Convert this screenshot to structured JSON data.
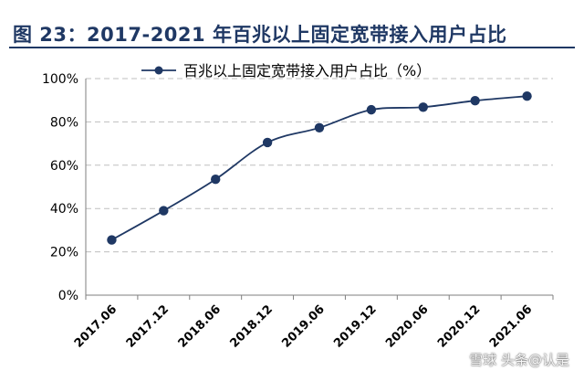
{
  "figure": {
    "title": "图 23：2017-2021 年百兆以上固定宽带接入用户占比"
  },
  "watermark": "雪球 头条@认是",
  "colors": {
    "title": "#1f3864",
    "series": "#1f3864",
    "grid": "#bfbfbf",
    "axis": "#7f7f7f"
  },
  "chart_data": {
    "type": "line",
    "categories": [
      "2017.06",
      "2017.12",
      "2018.06",
      "2018.12",
      "2019.06",
      "2019.12",
      "2020.06",
      "2020.12",
      "2021.06"
    ],
    "series": [
      {
        "name": "百兆以上固定宽带接入用户占比（%）",
        "values": [
          25.5,
          39.0,
          53.5,
          70.5,
          77.3,
          85.6,
          86.8,
          89.8,
          91.9
        ]
      }
    ],
    "ylim": [
      0,
      100
    ],
    "yticks": [
      0,
      20,
      40,
      60,
      80,
      100
    ],
    "ytick_labels": [
      "0%",
      "20%",
      "40%",
      "60%",
      "80%",
      "100%"
    ],
    "grid": "horizontal-dashed",
    "legend_position": "top-center",
    "marker": "circle"
  }
}
